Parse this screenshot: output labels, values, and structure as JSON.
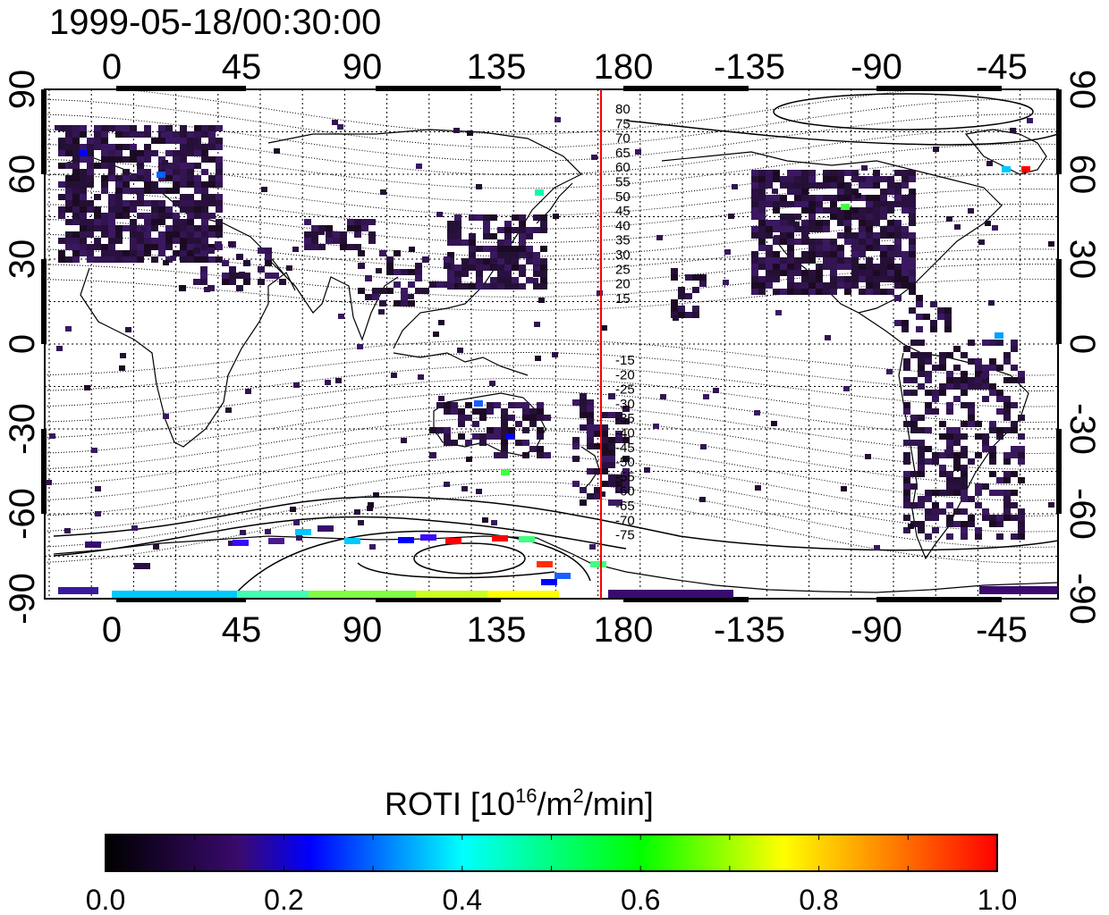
{
  "timestamp": "1999-05-18/00:30:00",
  "lon_ticks": [
    "0",
    "45",
    "90",
    "135",
    "180",
    "-135",
    "-90",
    "-45"
  ],
  "lat_ticks": [
    "90",
    "60",
    "30",
    "0",
    "-30",
    "-60",
    "-90"
  ],
  "mlat_contours_north": [
    "80",
    "75",
    "70",
    "65",
    "60",
    "55",
    "50",
    "45",
    "40",
    "35",
    "30",
    "25",
    "20",
    "15"
  ],
  "mlat_contours_south": [
    "-15",
    "-20",
    "-25",
    "-30",
    "-35",
    "-40",
    "-45",
    "-50",
    "-55",
    "-60",
    "-65",
    "-70",
    "-75"
  ],
  "colorbar": {
    "title": "ROTI",
    "unit_prefix": "[10",
    "unit_exp1": "16",
    "unit_mid": "/m",
    "unit_exp2": "2",
    "unit_suffix": "/min]",
    "tick_labels": [
      "0.0",
      "0.2",
      "0.4",
      "0.6",
      "0.8",
      "1.0"
    ],
    "min": 0.0,
    "max": 1.0,
    "colors": [
      "#000000",
      "#3a0a6e",
      "#0000ff",
      "#00ffff",
      "#00ff00",
      "#ffff00",
      "#ff7f00",
      "#ff0000"
    ]
  },
  "marker_line": {
    "longitude": 175,
    "color": "#ff0000"
  },
  "colors": {
    "dark_purple": "#2a1040",
    "purple": "#4b1a8c"
  }
}
